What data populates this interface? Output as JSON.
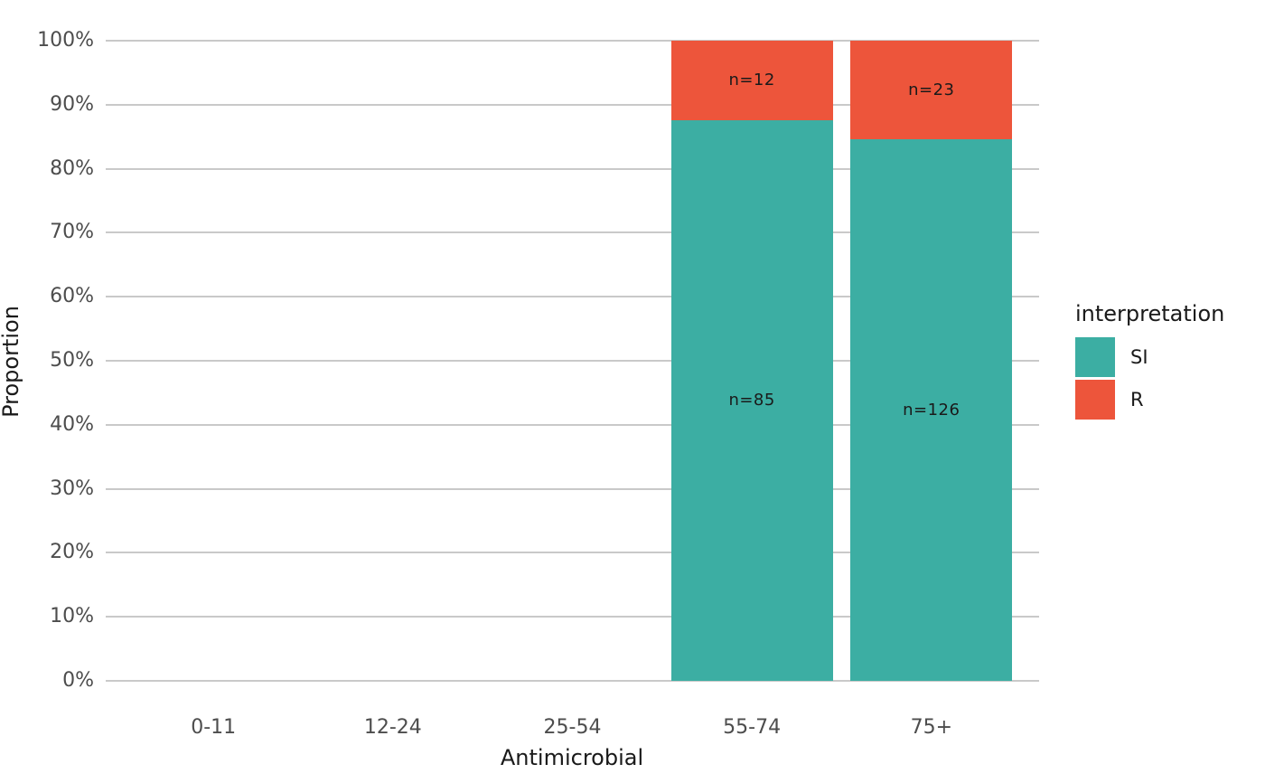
{
  "chart_data": {
    "type": "bar",
    "stacked": true,
    "proportional": true,
    "title": "",
    "xlabel": "Antimicrobial",
    "ylabel": "Proportion",
    "categories": [
      "0-11",
      "12-24",
      "25-54",
      "55-74",
      "75+"
    ],
    "series": [
      {
        "name": "SI",
        "color": "#3CAEA3",
        "values": [
          null,
          null,
          null,
          85,
          126
        ],
        "labels": [
          null,
          null,
          null,
          "n=85",
          "n=126"
        ]
      },
      {
        "name": "R",
        "color": "#ED553B",
        "values": [
          null,
          null,
          null,
          12,
          23
        ],
        "labels": [
          null,
          null,
          null,
          "n=12",
          "n=23"
        ]
      }
    ],
    "y_ticks": [
      {
        "label": "0%",
        "value": 0
      },
      {
        "label": "10%",
        "value": 10
      },
      {
        "label": "20%",
        "value": 20
      },
      {
        "label": "30%",
        "value": 30
      },
      {
        "label": "40%",
        "value": 40
      },
      {
        "label": "50%",
        "value": 50
      },
      {
        "label": "60%",
        "value": 60
      },
      {
        "label": "70%",
        "value": 70
      },
      {
        "label": "80%",
        "value": 80
      },
      {
        "label": "90%",
        "value": 90
      },
      {
        "label": "100%",
        "value": 100
      }
    ],
    "ylim": [
      0,
      100
    ],
    "grid": "horizontal-major-only",
    "legend": {
      "title": "interpretation",
      "position": "right",
      "items": [
        {
          "label": "SI",
          "color": "#3CAEA3"
        },
        {
          "label": "R",
          "color": "#ED553B"
        }
      ]
    },
    "colors": {
      "gridline": "#C9C9C9",
      "tick_text": "#4D4D4D",
      "axis_title_text": "#1A1A1A",
      "bar_label_text": "#1A1A1A",
      "background": "#FFFFFF"
    }
  }
}
